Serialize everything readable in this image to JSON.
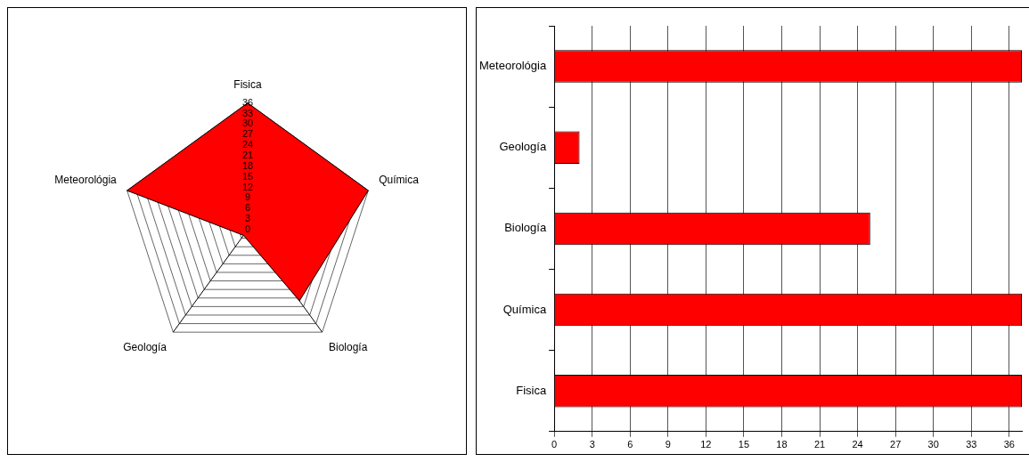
{
  "chart_data": [
    {
      "type": "radar",
      "categories": [
        "Fisica",
        "Química",
        "Biología",
        "Geología",
        "Meteorológia"
      ],
      "series": [
        {
          "color": "#ff0000",
          "values": [
            36,
            36,
            25,
            2,
            36
          ]
        }
      ],
      "ylim": [
        0,
        36
      ],
      "yticks": [
        0,
        3,
        6,
        9,
        12,
        15,
        18,
        21,
        24,
        27,
        30,
        33,
        36
      ],
      "grid": true,
      "marker": "none"
    },
    {
      "type": "bar",
      "orientation": "horizontal",
      "categories": [
        "Meteorológia",
        "Geología",
        "Biología",
        "Química",
        "Fisica"
      ],
      "values": [
        37,
        2,
        25,
        37,
        37
      ],
      "color": "#ff0000",
      "xlim": [
        0,
        37
      ],
      "xticks": [
        0,
        3,
        6,
        9,
        12,
        15,
        18,
        21,
        24,
        27,
        30,
        33,
        36
      ],
      "grid": "x"
    }
  ]
}
